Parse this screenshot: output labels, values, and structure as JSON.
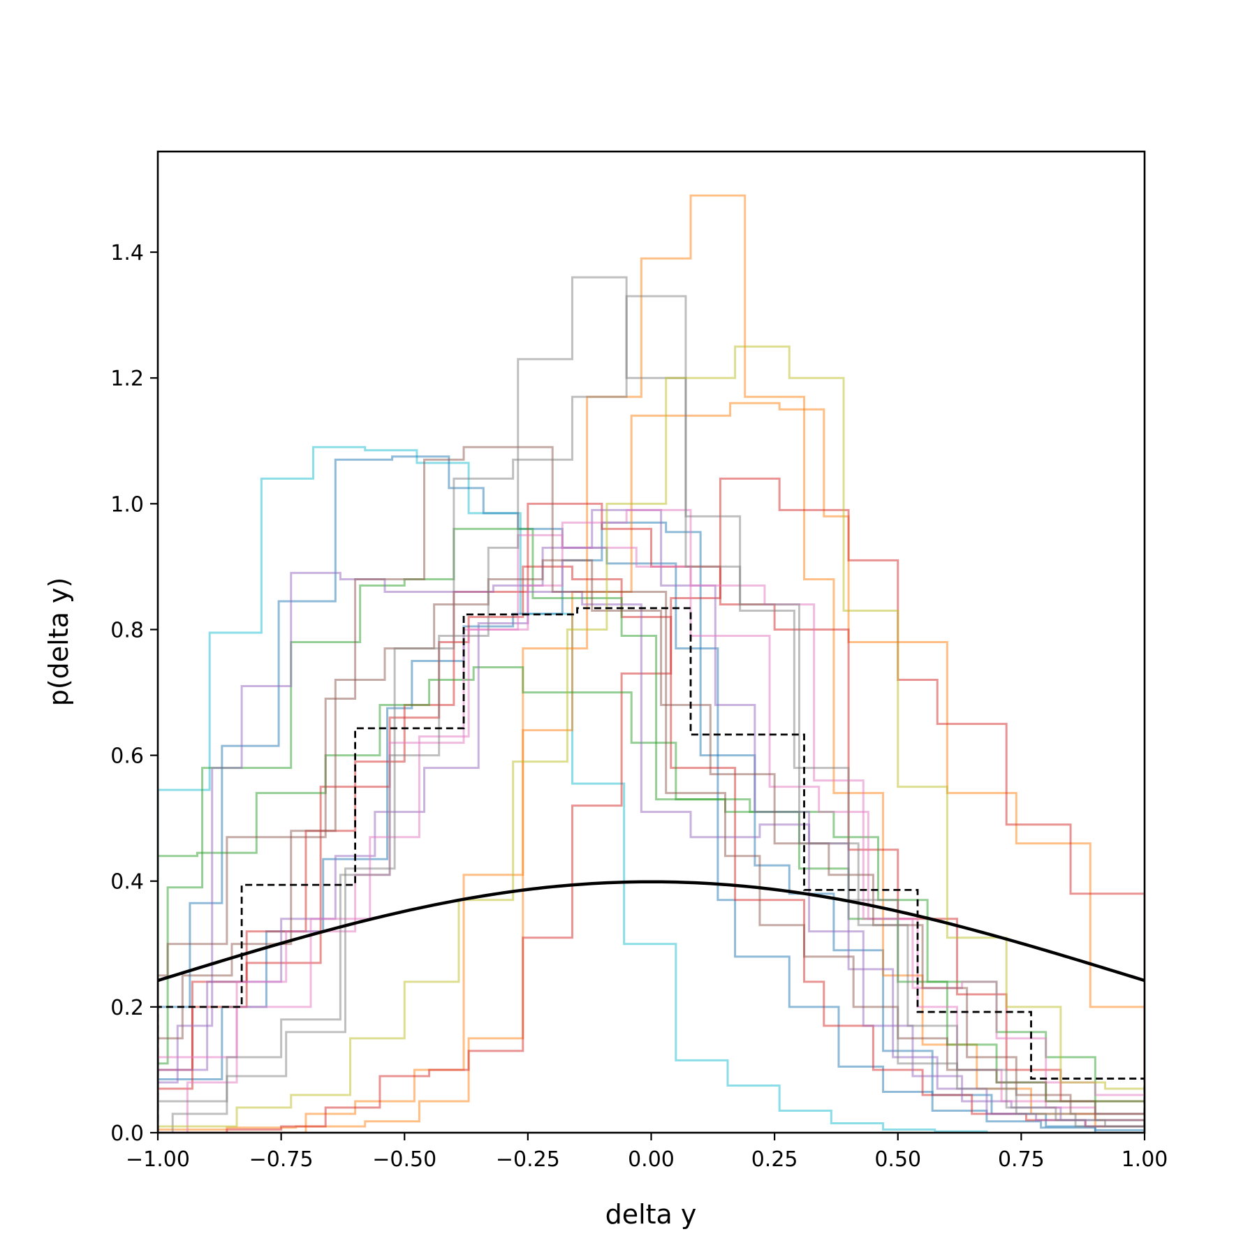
{
  "chart_data": {
    "type": "line",
    "title": "",
    "xlabel": "delta y",
    "ylabel": "p(delta y)",
    "xlim": [
      -1.0,
      1.0
    ],
    "ylim": [
      0.0,
      1.56
    ],
    "x_ticks": [
      -1.0,
      -0.75,
      -0.5,
      -0.25,
      0.0,
      0.25,
      0.5,
      0.75,
      1.0
    ],
    "x_tick_labels": [
      "−1.00",
      "−0.75",
      "−0.50",
      "−0.25",
      "0.00",
      "0.25",
      "0.50",
      "0.75",
      "1.00"
    ],
    "y_ticks": [
      0.0,
      0.2,
      0.4,
      0.6,
      0.8,
      1.0,
      1.2,
      1.4
    ],
    "y_tick_labels": [
      "0.0",
      "0.2",
      "0.4",
      "0.6",
      "0.8",
      "1.0",
      "1.2",
      "1.4"
    ],
    "grid": false,
    "legend": "none",
    "series": [
      {
        "kind": "step",
        "color": "#17becf",
        "edges": [
          -1.0,
          -0.895,
          -0.79,
          -0.685,
          -0.58,
          -0.475,
          -0.37,
          -0.265,
          -0.16,
          -0.055,
          0.05,
          0.155,
          0.26,
          0.365,
          0.47,
          0.575,
          0.68
        ],
        "values": [
          0.545,
          0.795,
          1.04,
          1.09,
          1.085,
          1.065,
          0.985,
          0.825,
          0.555,
          0.3,
          0.115,
          0.075,
          0.035,
          0.015,
          0.005,
          0.002
        ]
      },
      {
        "kind": "step",
        "color": "#1f77b4",
        "edges": [
          -1.0,
          -0.935,
          -0.87,
          -0.755,
          -0.64,
          -0.525,
          -0.41,
          -0.34,
          -0.27,
          -0.18,
          -0.09,
          0.05,
          0.135,
          0.17,
          0.28,
          0.38,
          0.47,
          0.57,
          0.68,
          0.79,
          0.9,
          1.0
        ],
        "values": [
          0.2,
          0.365,
          0.615,
          0.845,
          1.07,
          1.075,
          1.025,
          0.985,
          0.96,
          0.93,
          0.905,
          0.77,
          0.37,
          0.28,
          0.2,
          0.105,
          0.065,
          0.035,
          0.018,
          0.008,
          0.004
        ]
      },
      {
        "kind": "step",
        "color": "#1f77b4",
        "edges": [
          -1.0,
          -0.87,
          -0.78,
          -0.665,
          -0.535,
          -0.485,
          -0.38,
          -0.28,
          -0.18,
          -0.1,
          0.03,
          0.1,
          0.21,
          0.28,
          0.37,
          0.47,
          0.57,
          0.69,
          0.8,
          0.9
        ],
        "values": [
          0.085,
          0.2,
          0.32,
          0.435,
          0.675,
          0.75,
          0.805,
          0.825,
          0.91,
          0.97,
          0.955,
          0.6,
          0.425,
          0.38,
          0.29,
          0.13,
          0.06,
          0.03,
          0.01
        ]
      },
      {
        "kind": "step",
        "color": "#ff7f0e",
        "edges": [
          -1.0,
          -0.86,
          -0.72,
          -0.58,
          -0.47,
          -0.37,
          -0.26,
          -0.16,
          -0.04,
          0.08,
          0.16,
          0.26,
          0.35,
          0.4,
          0.6,
          0.74,
          0.89,
          1.0
        ],
        "values": [
          0.005,
          0.008,
          0.01,
          0.018,
          0.05,
          0.15,
          0.64,
          0.86,
          1.14,
          1.14,
          1.16,
          1.15,
          0.98,
          0.78,
          0.54,
          0.46,
          0.2
        ]
      },
      {
        "kind": "step",
        "color": "#ff7f0e",
        "edges": [
          -1.0,
          -0.7,
          -0.6,
          -0.48,
          -0.38,
          -0.26,
          -0.13,
          -0.02,
          0.08,
          0.19,
          0.31,
          0.37,
          0.47,
          0.55,
          0.66,
          0.77,
          0.9,
          1.0
        ],
        "values": [
          0.0,
          0.03,
          0.05,
          0.1,
          0.41,
          0.77,
          1.17,
          1.39,
          1.49,
          1.17,
          0.88,
          0.54,
          0.25,
          0.14,
          0.07,
          0.03,
          0.01
        ]
      },
      {
        "kind": "step",
        "color": "#d62728",
        "edges": [
          -1.0,
          -0.93,
          -0.82,
          -0.67,
          -0.53,
          -0.43,
          -0.37,
          -0.26,
          -0.16,
          -0.06,
          0.04,
          0.17,
          0.31,
          0.35,
          0.45,
          0.55,
          0.65,
          0.76,
          0.88,
          1.0
        ],
        "values": [
          0.07,
          0.2,
          0.27,
          0.55,
          0.66,
          0.78,
          0.82,
          0.9,
          0.88,
          0.82,
          0.58,
          0.37,
          0.24,
          0.17,
          0.1,
          0.06,
          0.03,
          0.02,
          0.01
        ]
      },
      {
        "kind": "step",
        "color": "#d62728",
        "edges": [
          -1.0,
          -0.86,
          -0.75,
          -0.66,
          -0.55,
          -0.45,
          -0.37,
          -0.26,
          -0.16,
          -0.06,
          0.04,
          0.14,
          0.26,
          0.4,
          0.5,
          0.58,
          0.72,
          0.85,
          1.0
        ],
        "values": [
          0.0,
          0.005,
          0.01,
          0.04,
          0.09,
          0.1,
          0.13,
          0.31,
          0.52,
          0.73,
          0.85,
          1.04,
          0.99,
          0.91,
          0.72,
          0.65,
          0.49,
          0.38
        ]
      },
      {
        "kind": "step",
        "color": "#d62728",
        "edges": [
          -1.0,
          -0.93,
          -0.82,
          -0.7,
          -0.6,
          -0.5,
          -0.4,
          -0.25,
          -0.1,
          0.0,
          0.14,
          0.25,
          0.4,
          0.5,
          0.62,
          0.72,
          0.83,
          1.0
        ],
        "values": [
          0.1,
          0.24,
          0.32,
          0.48,
          0.59,
          0.68,
          0.86,
          1.0,
          0.96,
          0.9,
          0.84,
          0.8,
          0.45,
          0.34,
          0.22,
          0.1,
          0.05
        ]
      },
      {
        "kind": "step",
        "color": "#2ca02c",
        "edges": [
          -1.0,
          -0.98,
          -0.91,
          -0.87,
          -0.73,
          -0.63,
          -0.59,
          -0.5,
          -0.4,
          -0.32,
          -0.24,
          -0.15,
          -0.06,
          0.01,
          0.15,
          0.26,
          0.37,
          0.46,
          0.56,
          0.7,
          0.8,
          0.9,
          1.0
        ],
        "values": [
          0.11,
          0.39,
          0.58,
          0.58,
          0.78,
          0.78,
          0.87,
          0.88,
          0.96,
          0.96,
          0.85,
          0.85,
          0.79,
          0.53,
          0.51,
          0.51,
          0.47,
          0.37,
          0.24,
          0.16,
          0.12,
          0.05
        ]
      },
      {
        "kind": "step",
        "color": "#2ca02c",
        "edges": [
          -1.0,
          -0.92,
          -0.8,
          -0.66,
          -0.55,
          -0.45,
          -0.36,
          -0.26,
          -0.15,
          -0.04,
          0.05,
          0.2,
          0.3,
          0.4,
          0.5,
          0.6,
          0.7,
          0.8,
          0.9,
          1.0
        ],
        "values": [
          0.44,
          0.445,
          0.54,
          0.6,
          0.68,
          0.72,
          0.74,
          0.7,
          0.7,
          0.62,
          0.53,
          0.51,
          0.42,
          0.34,
          0.24,
          0.14,
          0.08,
          0.05,
          0.03
        ]
      },
      {
        "kind": "step",
        "color": "#9467bd",
        "edges": [
          -1.0,
          -0.96,
          -0.89,
          -0.83,
          -0.73,
          -0.63,
          -0.54,
          -0.44,
          -0.32,
          -0.22,
          -0.12,
          0.02,
          0.13,
          0.21,
          0.32,
          0.4,
          0.49,
          0.58,
          0.68,
          0.78,
          0.88,
          1.0
        ],
        "values": [
          0.08,
          0.17,
          0.58,
          0.71,
          0.89,
          0.88,
          0.86,
          0.86,
          0.87,
          0.93,
          0.99,
          0.87,
          0.68,
          0.51,
          0.46,
          0.26,
          0.12,
          0.07,
          0.03,
          0.02,
          0.01
        ]
      },
      {
        "kind": "step",
        "color": "#9467bd",
        "edges": [
          -1.0,
          -0.9,
          -0.75,
          -0.64,
          -0.56,
          -0.46,
          -0.35,
          -0.25,
          -0.14,
          -0.02,
          0.08,
          0.22,
          0.32,
          0.43,
          0.53,
          0.63,
          0.73,
          0.83,
          1.0
        ],
        "values": [
          0.1,
          0.24,
          0.34,
          0.44,
          0.51,
          0.58,
          0.81,
          0.86,
          0.84,
          0.51,
          0.47,
          0.49,
          0.32,
          0.17,
          0.09,
          0.05,
          0.04,
          0.02
        ]
      },
      {
        "kind": "step",
        "color": "#e377c2",
        "edges": [
          -1.0,
          -0.84,
          -0.74,
          -0.6,
          -0.53,
          -0.38,
          -0.25,
          -0.18,
          -0.05,
          0.08,
          0.23,
          0.33,
          0.43,
          0.53,
          0.63,
          0.7,
          0.8,
          0.9,
          1.0
        ],
        "values": [
          0.12,
          0.24,
          0.32,
          0.41,
          0.62,
          0.8,
          0.87,
          0.97,
          0.99,
          0.87,
          0.84,
          0.56,
          0.34,
          0.23,
          0.24,
          0.15,
          0.08,
          0.06
        ]
      },
      {
        "kind": "step",
        "color": "#e377c2",
        "edges": [
          -1.0,
          -0.94,
          -0.84,
          -0.69,
          -0.57,
          -0.47,
          -0.37,
          -0.27,
          -0.18,
          -0.03,
          0.08,
          0.24,
          0.34,
          0.44,
          0.54,
          0.62,
          0.71,
          0.8,
          0.9,
          1.0
        ],
        "values": [
          0.0,
          0.08,
          0.2,
          0.34,
          0.47,
          0.63,
          0.8,
          0.95,
          0.93,
          0.9,
          0.79,
          0.55,
          0.51,
          0.34,
          0.2,
          0.1,
          0.05,
          0.04,
          0.03
        ]
      },
      {
        "kind": "step",
        "color": "#8c564b",
        "edges": [
          -1.0,
          -0.98,
          -0.86,
          -0.75,
          -0.66,
          -0.6,
          -0.54,
          -0.46,
          -0.38,
          -0.27,
          -0.2,
          -0.08,
          0.03,
          0.15,
          0.22,
          0.31,
          0.41,
          0.5,
          0.6,
          0.7,
          0.8,
          0.9,
          1.0
        ],
        "values": [
          0.25,
          0.3,
          0.47,
          0.47,
          0.69,
          0.88,
          0.88,
          1.07,
          1.09,
          1.09,
          0.86,
          0.86,
          0.54,
          0.44,
          0.33,
          0.28,
          0.2,
          0.15,
          0.1,
          0.08,
          0.05,
          0.02
        ]
      },
      {
        "kind": "step",
        "color": "#8c564b",
        "edges": [
          -1.0,
          -0.95,
          -0.85,
          -0.73,
          -0.64,
          -0.54,
          -0.44,
          -0.33,
          -0.22,
          -0.12,
          0.02,
          0.12,
          0.25,
          0.36,
          0.45,
          0.55,
          0.64,
          0.74,
          0.85,
          1.0
        ],
        "values": [
          0.15,
          0.25,
          0.3,
          0.48,
          0.72,
          0.77,
          0.84,
          0.88,
          0.91,
          0.83,
          0.68,
          0.57,
          0.46,
          0.41,
          0.33,
          0.23,
          0.12,
          0.06,
          0.03
        ]
      },
      {
        "kind": "step",
        "color": "#7f7f7f",
        "edges": [
          -1.0,
          -0.97,
          -0.86,
          -0.74,
          -0.62,
          -0.52,
          -0.4,
          -0.28,
          -0.16,
          -0.05,
          0.07,
          0.18,
          0.29,
          0.4,
          0.5,
          0.62,
          0.74,
          0.86,
          1.0
        ],
        "values": [
          0.0,
          0.03,
          0.09,
          0.16,
          0.42,
          0.77,
          1.04,
          1.07,
          1.17,
          1.33,
          0.9,
          0.83,
          0.58,
          0.37,
          0.11,
          0.07,
          0.03,
          0.01
        ]
      },
      {
        "kind": "step",
        "color": "#7f7f7f",
        "edges": [
          -1.0,
          -0.86,
          -0.75,
          -0.63,
          -0.53,
          -0.43,
          -0.33,
          -0.27,
          -0.16,
          -0.05,
          0.07,
          0.18,
          0.3,
          0.42,
          0.52,
          0.62,
          0.72,
          0.82,
          0.92,
          1.0
        ],
        "values": [
          0.05,
          0.12,
          0.18,
          0.41,
          0.6,
          0.79,
          0.93,
          1.23,
          1.36,
          1.2,
          0.98,
          0.84,
          0.46,
          0.33,
          0.17,
          0.1,
          0.04,
          0.02,
          0.01
        ]
      },
      {
        "kind": "step",
        "color": "#bcbd22",
        "edges": [
          -1.0,
          -0.84,
          -0.73,
          -0.61,
          -0.5,
          -0.39,
          -0.28,
          -0.17,
          -0.09,
          0.03,
          0.1,
          0.17,
          0.28,
          0.39,
          0.5,
          0.6,
          0.72,
          0.83,
          0.92,
          1.0
        ],
        "values": [
          0.01,
          0.04,
          0.06,
          0.15,
          0.24,
          0.37,
          0.59,
          0.8,
          1.0,
          1.2,
          1.2,
          1.25,
          1.2,
          0.83,
          0.55,
          0.31,
          0.2,
          0.08,
          0.07
        ]
      },
      {
        "kind": "step",
        "color": "#000000",
        "dashed": true,
        "edges": [
          -1.0,
          -0.83,
          -0.6,
          -0.38,
          -0.15,
          0.08,
          0.31,
          0.54,
          0.77,
          1.0
        ],
        "values": [
          0.2,
          0.394,
          0.643,
          0.824,
          0.834,
          0.633,
          0.386,
          0.192,
          0.086
        ]
      },
      {
        "kind": "curve",
        "color": "#000000",
        "function": "normal_pdf",
        "mean": 0.0,
        "std": 1.0
      }
    ]
  }
}
